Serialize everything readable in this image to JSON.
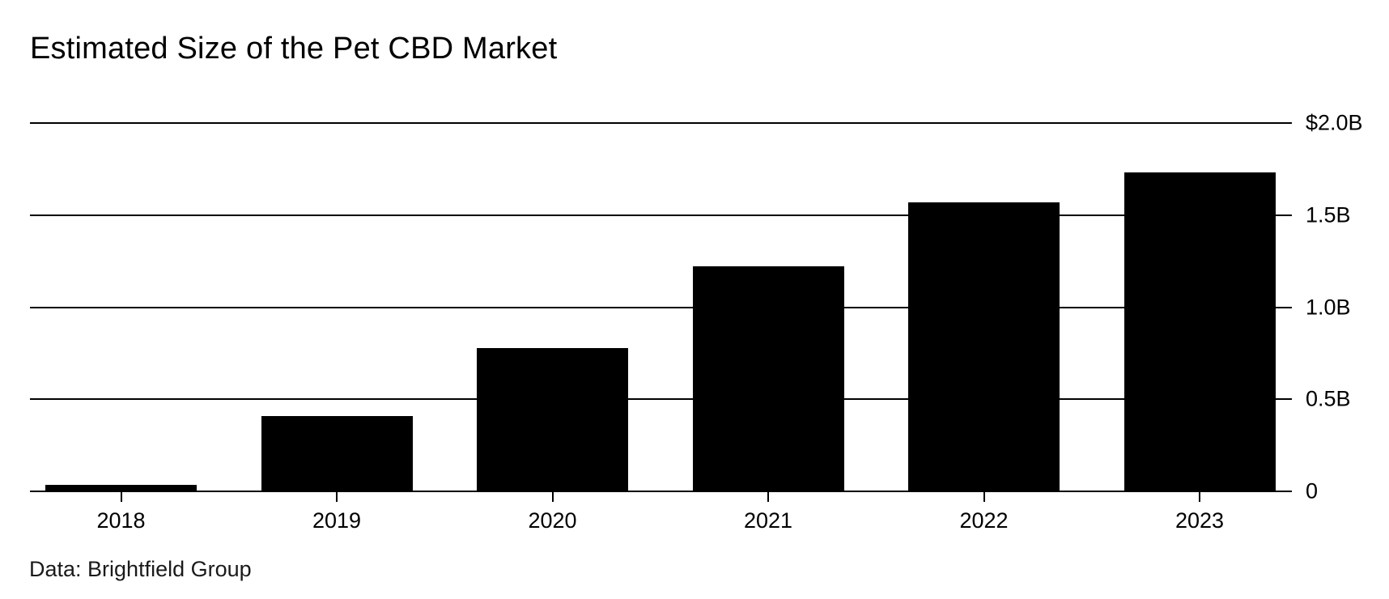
{
  "title": "Estimated Size of the Pet CBD Market",
  "source": "Data: Brightfield Group",
  "colors": {
    "bar": "#000000",
    "grid": "#000000",
    "text": "#000000",
    "background": "#ffffff"
  },
  "chart_data": {
    "type": "bar",
    "title": "Estimated Size of the Pet CBD Market",
    "categories": [
      "2018",
      "2019",
      "2020",
      "2021",
      "2022",
      "2023"
    ],
    "values": [
      0.035,
      0.41,
      0.78,
      1.22,
      1.57,
      1.73
    ],
    "unit": "USD billions",
    "xlabel": "",
    "ylabel": "",
    "ylim": [
      0,
      2.0
    ],
    "yticks": [
      {
        "value": 2.0,
        "label": "$2.0B"
      },
      {
        "value": 1.5,
        "label": "1.5B"
      },
      {
        "value": 1.0,
        "label": "1.0B"
      },
      {
        "value": 0.5,
        "label": "0.5B"
      },
      {
        "value": 0.0,
        "label": "0"
      }
    ],
    "grid": true,
    "legend": false,
    "source_label": "Data: Brightfield Group"
  }
}
